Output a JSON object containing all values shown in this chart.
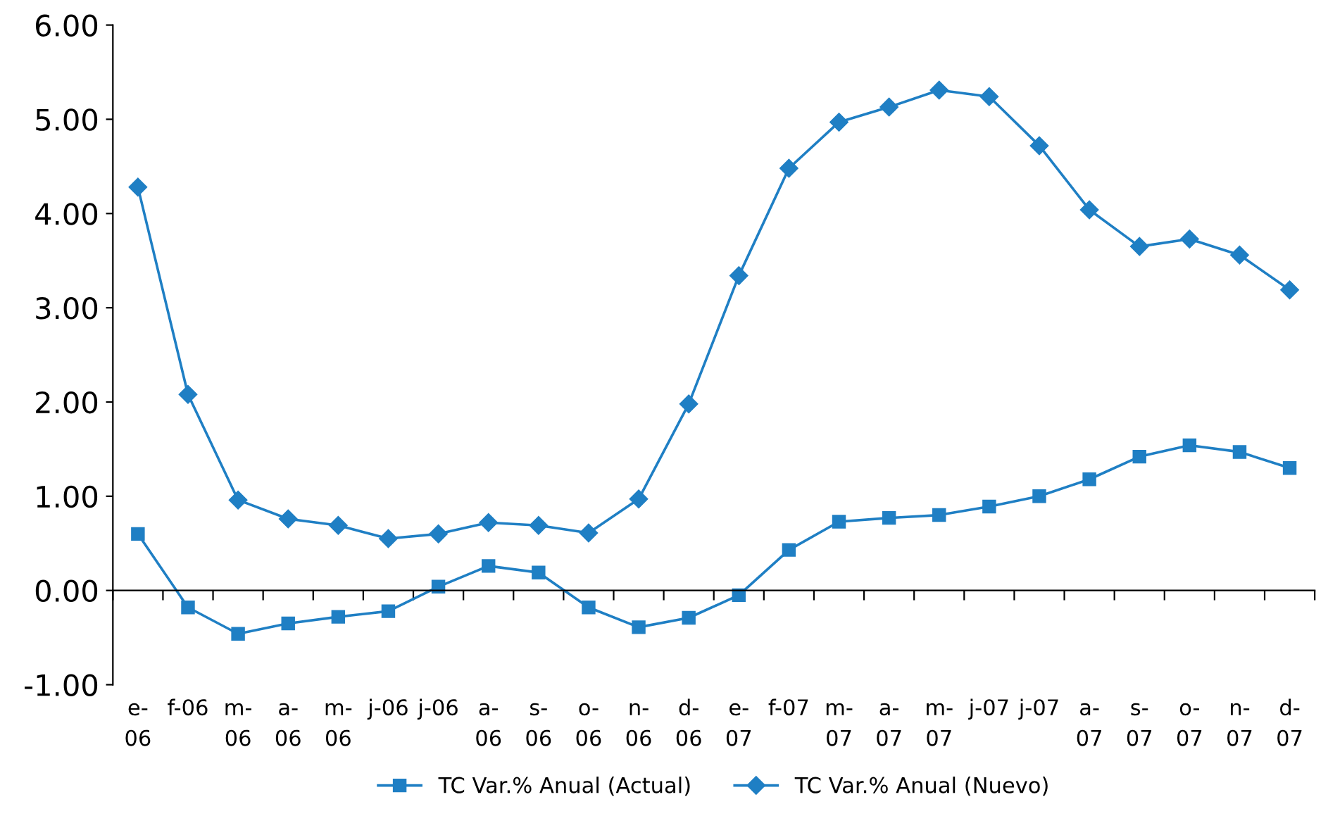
{
  "chart_data": {
    "type": "line",
    "categories": [
      "e-\n06",
      "f-06",
      "m-\n06",
      "a-\n06",
      "m-\n06",
      "j-06",
      "j-06",
      "a-\n06",
      "s-\n06",
      "o-\n06",
      "n-\n06",
      "d-\n06",
      "e-\n07",
      "f-07",
      "m-\n07",
      "a-\n07",
      "m-\n07",
      "j-07",
      "j-07",
      "a-\n07",
      "s-\n07",
      "o-\n07",
      "n-\n07",
      "d-\n07"
    ],
    "series": [
      {
        "name": "TC Var.% Anual (Actual)",
        "color": "#1f7fc4",
        "marker": "square",
        "values": [
          0.6,
          -0.18,
          -0.46,
          -0.35,
          -0.28,
          -0.22,
          0.04,
          0.26,
          0.19,
          -0.18,
          -0.39,
          -0.29,
          -0.05,
          0.43,
          0.73,
          0.77,
          0.8,
          0.89,
          1.0,
          1.18,
          1.42,
          1.54,
          1.47,
          1.3
        ]
      },
      {
        "name": "TC Var.% Anual (Nuevo)",
        "color": "#1f7fc4",
        "marker": "diamond",
        "values": [
          4.28,
          2.08,
          0.96,
          0.76,
          0.69,
          0.55,
          0.6,
          0.72,
          0.69,
          0.61,
          0.97,
          1.98,
          3.34,
          4.48,
          4.97,
          5.13,
          5.31,
          5.24,
          4.72,
          4.04,
          3.65,
          3.73,
          3.56,
          3.19
        ]
      }
    ],
    "ylim": [
      -1,
      6
    ],
    "yticks": [
      {
        "value": -1,
        "label": "-1.00"
      },
      {
        "value": 0,
        "label": "0.00"
      },
      {
        "value": 1,
        "label": "1.00"
      },
      {
        "value": 2,
        "label": "2.00"
      },
      {
        "value": 3,
        "label": "3.00"
      },
      {
        "value": 4,
        "label": "4.00"
      },
      {
        "value": 5,
        "label": "5.00"
      },
      {
        "value": 6,
        "label": "6.00"
      }
    ],
    "legend": "bottom"
  }
}
